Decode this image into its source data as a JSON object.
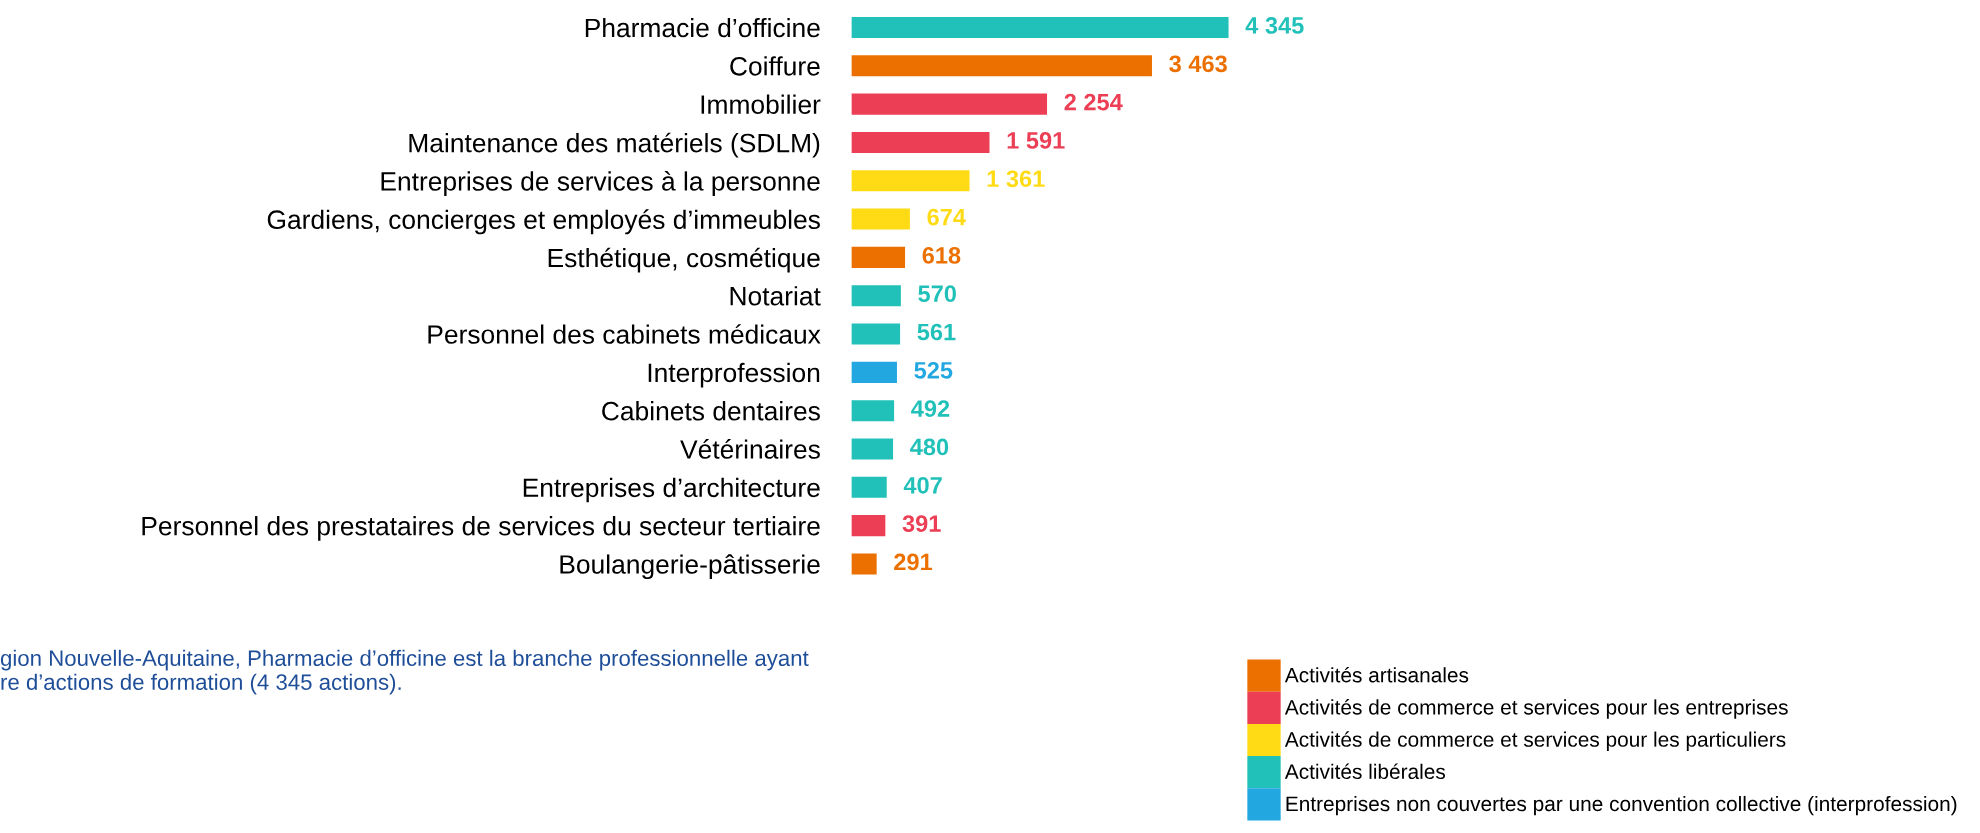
{
  "chart_data": {
    "type": "bar",
    "orientation": "horizontal",
    "categories": [
      "Pharmacie d’officine",
      "Coiffure",
      "Immobilier",
      "Maintenance des matériels (SDLM)",
      "Entreprises de services à la personne",
      "Gardiens, concierges et employés d’immeubles",
      "Esthétique, cosmétique",
      "Notariat",
      "Personnel des cabinets médicaux",
      "Interprofession",
      "Cabinets dentaires",
      "Vétérinaires",
      "Entreprises d’architecture",
      "Personnel des prestataires de services du secteur tertiaire",
      "Boulangerie-pâtisserie"
    ],
    "series": [
      {
        "name": "Activités artisanales",
        "color": "#ec7000",
        "values": [
          null,
          3463,
          null,
          null,
          null,
          null,
          618,
          null,
          null,
          null,
          null,
          null,
          null,
          null,
          291
        ],
        "value_labels": [
          null,
          "3 463",
          null,
          null,
          null,
          null,
          "618",
          null,
          null,
          null,
          null,
          null,
          null,
          null,
          "291"
        ]
      },
      {
        "name": "Activités de commerce et services pour les entreprises",
        "color": "#ec3e54",
        "values": [
          null,
          null,
          2254,
          1591,
          null,
          null,
          null,
          null,
          null,
          null,
          null,
          null,
          null,
          391,
          null
        ],
        "value_labels": [
          null,
          null,
          "2 254",
          "1 591",
          null,
          null,
          null,
          null,
          null,
          null,
          null,
          null,
          null,
          "391",
          null
        ]
      },
      {
        "name": "Activités de commerce et services pour les particuliers",
        "color": "#ffdb16",
        "values": [
          null,
          null,
          null,
          null,
          1361,
          674,
          null,
          null,
          null,
          null,
          null,
          null,
          null,
          null,
          null
        ],
        "value_labels": [
          null,
          null,
          null,
          null,
          "1 361",
          "674",
          null,
          null,
          null,
          null,
          null,
          null,
          null,
          null,
          null
        ]
      },
      {
        "name": "Activités libérales",
        "color": "#21c1b9",
        "values": [
          4345,
          null,
          null,
          null,
          null,
          null,
          null,
          570,
          561,
          null,
          492,
          480,
          407,
          null,
          null
        ],
        "value_labels": [
          "4 345",
          null,
          null,
          null,
          null,
          null,
          null,
          "570",
          "561",
          null,
          "492",
          "480",
          "407",
          null,
          null
        ]
      },
      {
        "name": "Entreprises non couvertes par une convention collective (interprofession)",
        "color": "#22a7e0",
        "values": [
          null,
          null,
          null,
          null,
          null,
          null,
          null,
          null,
          null,
          525,
          null,
          null,
          null,
          null,
          null
        ],
        "value_labels": [
          null,
          null,
          null,
          null,
          null,
          null,
          null,
          null,
          null,
          "525",
          null,
          null,
          null,
          null,
          null
        ]
      }
    ],
    "annotations": [
      "gion Nouvelle-Aquitaine, Pharmacie d’officine est la branche professionnelle ayant\nre d’actions de formation (4 345 actions)."
    ],
    "legend": "bottom right",
    "grid": false
  }
}
